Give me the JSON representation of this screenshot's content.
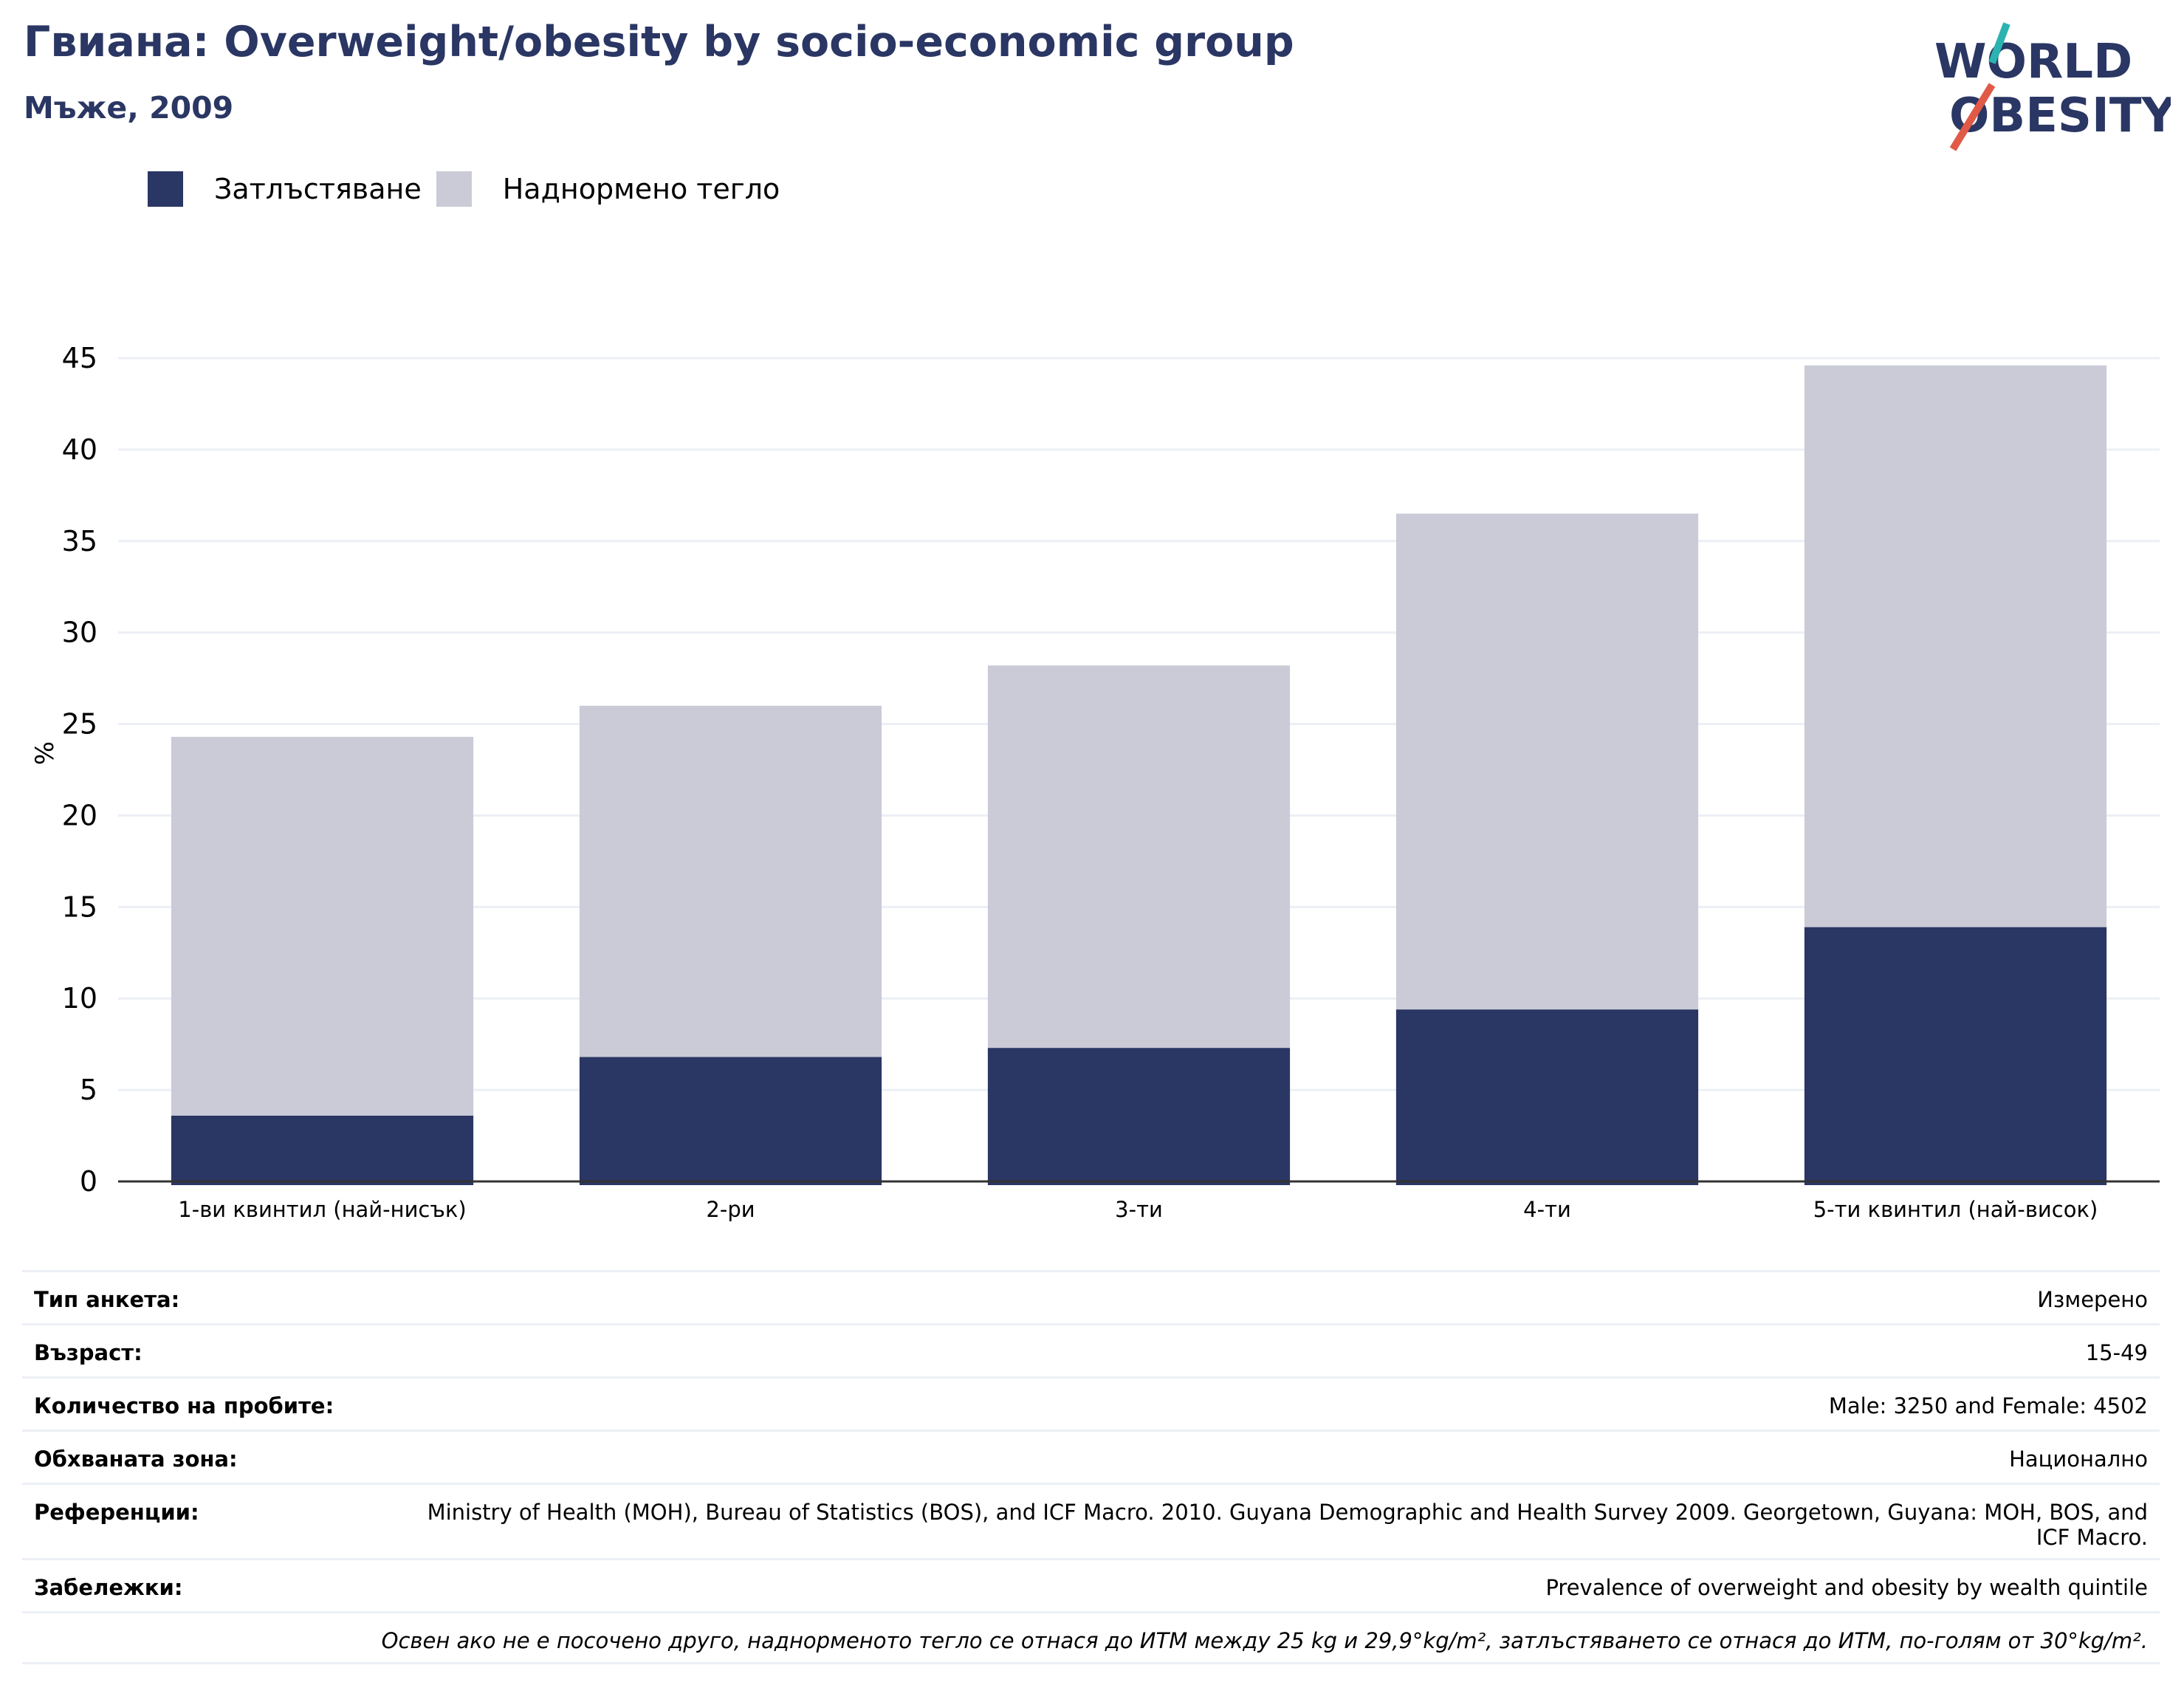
{
  "header": {
    "title": "Гвиана: Overweight/obesity by socio-economic group",
    "subtitle": "Мъже, 2009"
  },
  "logo": {
    "line1": "WORLD",
    "line2": "OBESITY",
    "accent_teal": "#2bb3b1",
    "accent_red": "#e05a47",
    "text_color": "#2a3663"
  },
  "colors": {
    "obesity": "#2a3663",
    "overweight": "#cacbd7",
    "grid": "#eceff5",
    "axis": "#333333"
  },
  "legend": [
    {
      "label": "Затлъстяване",
      "color": "#2a3663"
    },
    {
      "label": "Наднормено тегло",
      "color": "#cacbd7"
    }
  ],
  "chart_data": {
    "type": "bar",
    "stacked": true,
    "ylabel": "%",
    "ylim": [
      0,
      45
    ],
    "yticks": [
      0,
      5,
      10,
      15,
      20,
      25,
      30,
      35,
      40,
      45
    ],
    "grid": true,
    "legend_position": "top-left",
    "categories": [
      "1-ви квинтил (най-нисък)",
      "2-ри",
      "3-ти",
      "4-ти",
      "5-ти квинтил (най-висок)"
    ],
    "series": [
      {
        "name": "Затлъстяване",
        "values": [
          3.6,
          6.8,
          7.3,
          9.4,
          13.9
        ]
      },
      {
        "name": "Наднормено тегло",
        "values": [
          20.7,
          19.2,
          20.9,
          27.1,
          30.7
        ]
      }
    ]
  },
  "info": {
    "rows": [
      {
        "key": "Тип анкета:",
        "value": "Измерено"
      },
      {
        "key": "Възраст:",
        "value": "15-49"
      },
      {
        "key": "Количество на пробите:",
        "value": "Male: 3250 and Female: 4502"
      },
      {
        "key": "Обхваната зона:",
        "value": "Национално"
      },
      {
        "key": "Референции:",
        "value": "Ministry of Health (MOH), Bureau of Statistics (BOS), and ICF Macro. 2010. Guyana Demographic and Health Survey 2009. Georgetown, Guyana: MOH, BOS, and ICF Macro."
      },
      {
        "key": "Забележки:",
        "value": "Prevalence of overweight and obesity by wealth quintile"
      }
    ],
    "footnote": "Освен ако не е посочено друго, наднорменото тегло се отнася до ИТМ между 25 kg и 29,9°kg/m², затлъстяването се отнася до ИТМ, по-голям от 30°kg/m²."
  }
}
